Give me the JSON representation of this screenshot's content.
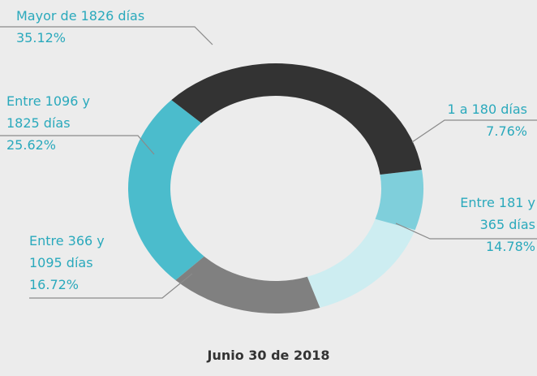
{
  "chart_data": {
    "type": "donut",
    "title": "Junio 30 de 2018",
    "categories": [
      "Mayor de 1826 días",
      "1 a 180 días",
      "Entre 181 y\n365 días",
      "Entre 366 y\n1095 días",
      "Entre 1096 y\n1825 días"
    ],
    "values": [
      35.12,
      7.76,
      14.78,
      16.72,
      25.62
    ],
    "value_labels": [
      "35.12%",
      "7.76%",
      "14.78%",
      "16.72%",
      "25.62%"
    ],
    "colors": [
      "#333333",
      "#7fcfdb",
      "#cdedf1",
      "#808080",
      "#4bbccc"
    ]
  }
}
